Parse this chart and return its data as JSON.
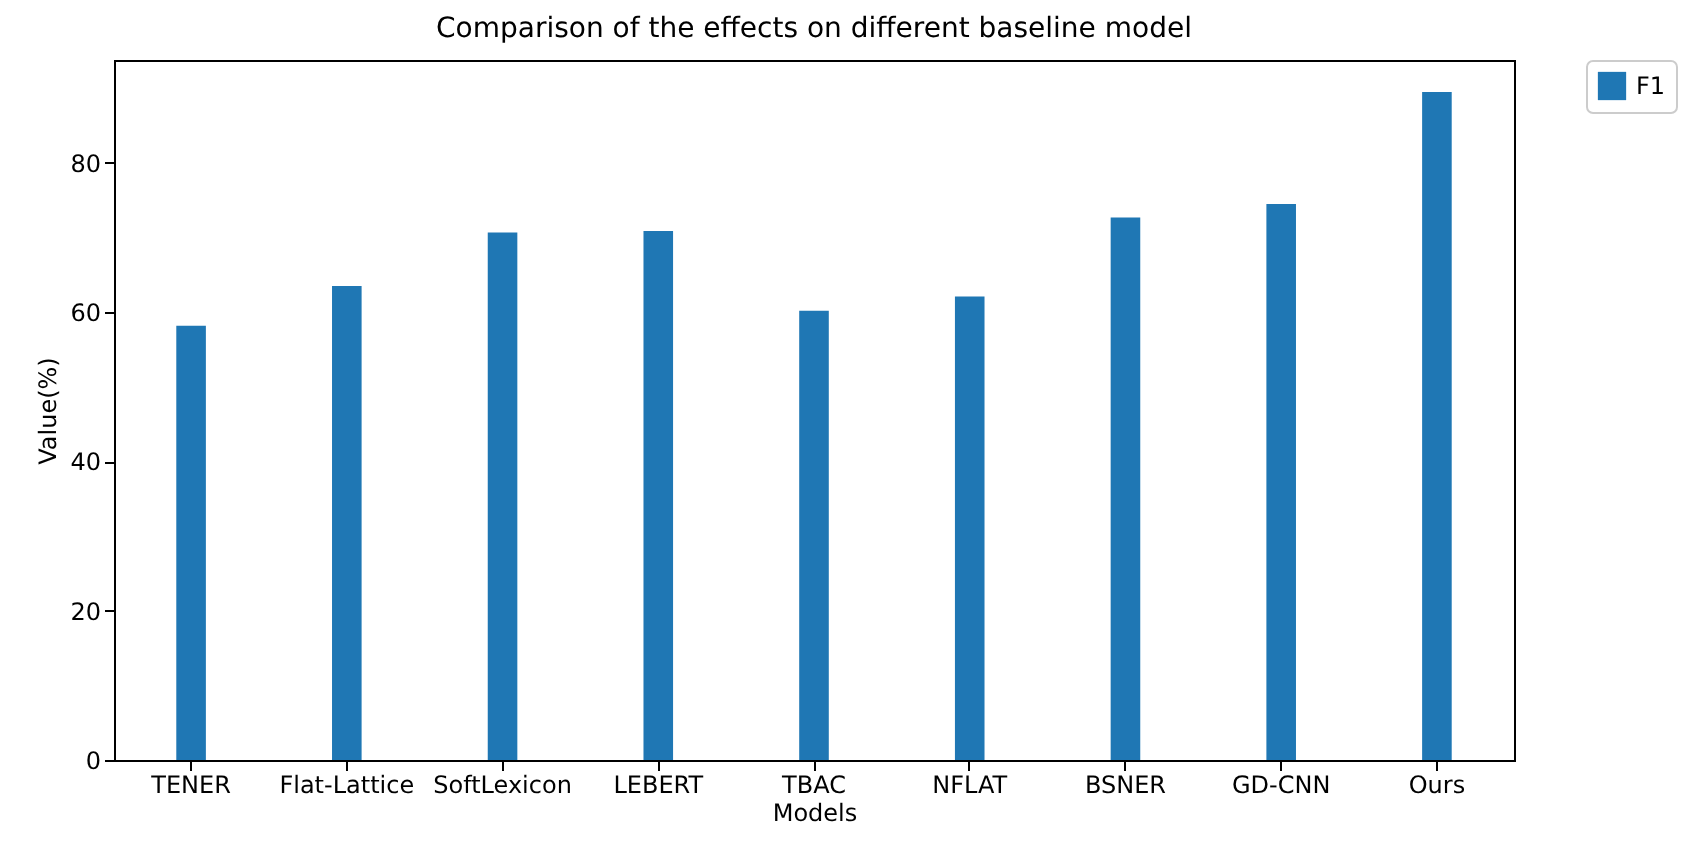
{
  "chart_data": {
    "type": "bar",
    "title": "Comparison of the effects on different baseline model",
    "xlabel": "Models",
    "ylabel": "Value(%)",
    "categories": [
      "TENER",
      "Flat-Lattice",
      "SoftLexicon",
      "LEBERT",
      "TBAC",
      "NFLAT",
      "BSNER",
      "GD-CNN",
      "Ours"
    ],
    "series": [
      {
        "name": "F1",
        "color": "#1f77b4",
        "values": [
          58.2,
          63.5,
          70.7,
          70.9,
          60.2,
          62.1,
          72.7,
          74.5,
          89.5
        ]
      }
    ],
    "ylim": [
      0,
      93.8
    ],
    "yticks": [
      0,
      20,
      40,
      60,
      80
    ],
    "grid": false,
    "legend": "right"
  }
}
